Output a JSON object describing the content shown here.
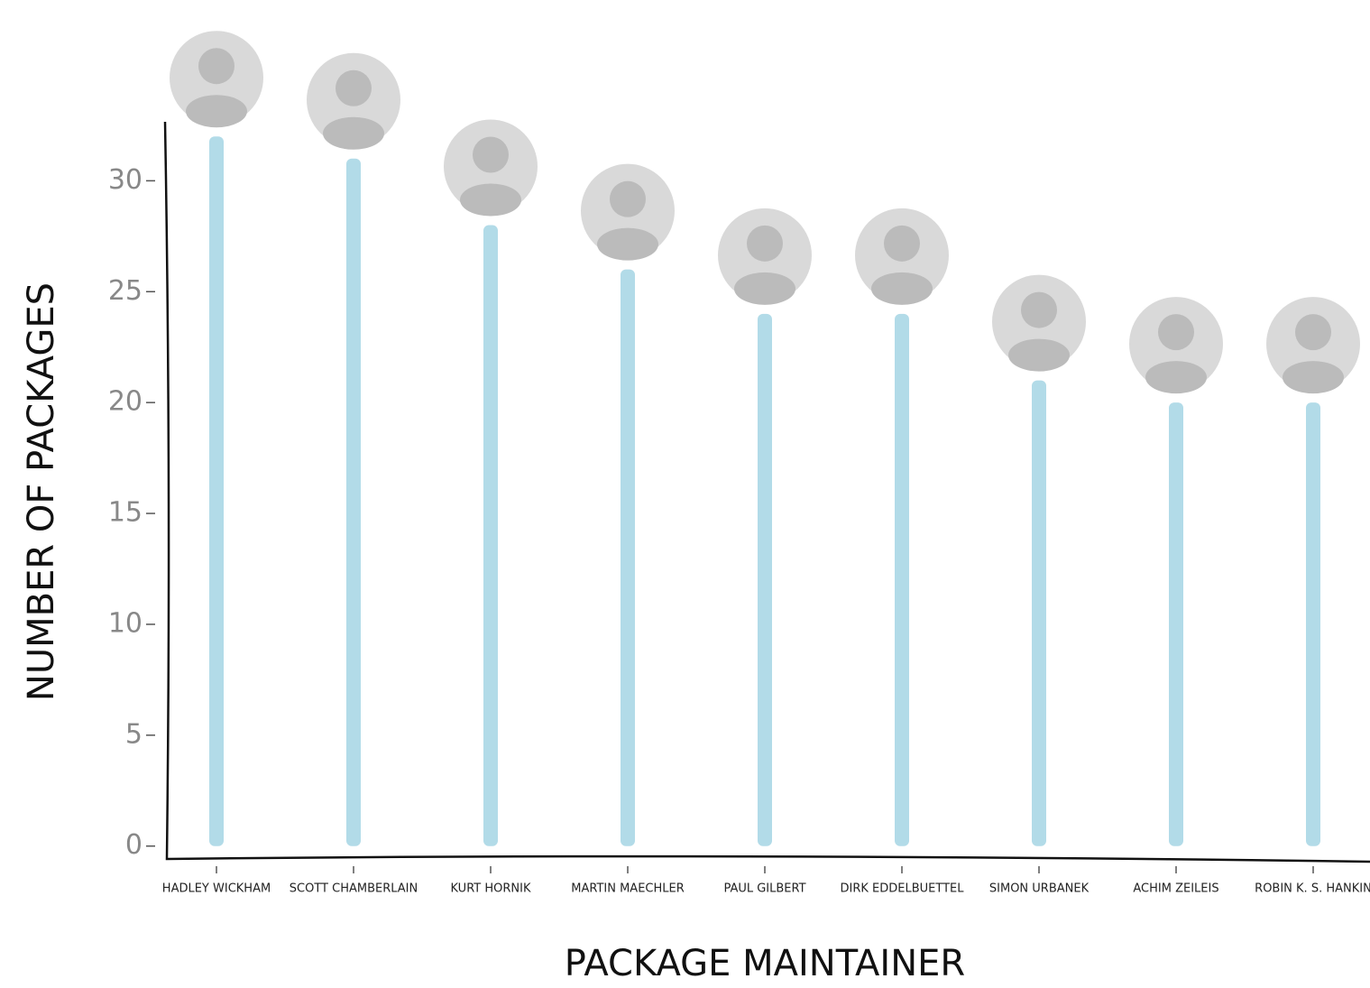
{
  "chart_data": {
    "type": "bar",
    "x_label": "PACKAGE MAINTAINER",
    "y_label": "NUMBER OF PACKAGES",
    "categories": [
      "HADLEY WICKHAM",
      "SCOTT CHAMBERLAIN",
      "KURT HORNIK",
      "MARTIN MAECHLER",
      "PAUL GILBERT",
      "DIRK EDDELBUETTEL",
      "SIMON URBANEK",
      "ACHIM ZEILEIS",
      "ROBIN K. S. HANKIN"
    ],
    "values": [
      32,
      31,
      28,
      26,
      24,
      24,
      21,
      20,
      20
    ],
    "color": "#b2dbe8",
    "ylim": [
      -0.5,
      32.7
    ],
    "yticks": [
      0,
      5,
      10,
      15,
      20,
      25,
      30
    ]
  }
}
